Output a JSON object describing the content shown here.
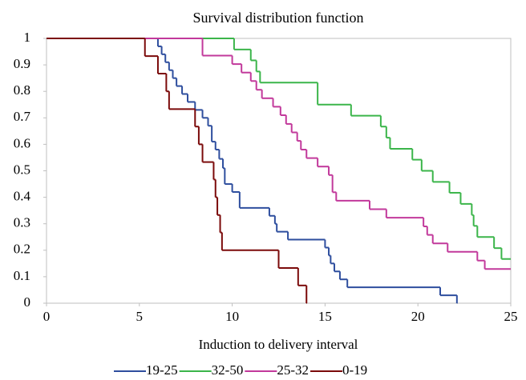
{
  "chart_data": {
    "type": "step",
    "title": "Survival distribution function",
    "x_label": "Induction to delivery interval",
    "xlim": [
      0,
      25
    ],
    "xticks": [
      0,
      5,
      10,
      15,
      20,
      25
    ],
    "ylim": [
      0,
      1
    ],
    "yticks": [
      0,
      0.1,
      0.2,
      0.3,
      0.4,
      0.5,
      0.6,
      0.7,
      0.8,
      0.9,
      1
    ],
    "series": [
      {
        "name": "19-25",
        "color": "#2e4e9e",
        "x": [
          0,
          6.0,
          6.2,
          6.4,
          6.6,
          6.8,
          7.0,
          7.3,
          7.6,
          8.0,
          8.4,
          8.7,
          8.9,
          9.1,
          9.3,
          9.5,
          9.6,
          10.0,
          10.4,
          12.0,
          12.3,
          12.4,
          13.0,
          15.0,
          15.2,
          15.3,
          15.5,
          15.8,
          16.2,
          21.2,
          22.1
        ],
        "values": [
          1,
          0.97,
          0.94,
          0.91,
          0.88,
          0.85,
          0.82,
          0.79,
          0.76,
          0.73,
          0.7,
          0.67,
          0.61,
          0.58,
          0.545,
          0.51,
          0.45,
          0.42,
          0.36,
          0.33,
          0.3,
          0.27,
          0.24,
          0.21,
          0.18,
          0.15,
          0.12,
          0.09,
          0.06,
          0.03,
          0
        ]
      },
      {
        "name": "32-50",
        "color": "#3bb54a",
        "x": [
          0,
          10.1,
          11.0,
          11.3,
          11.5,
          14.6,
          16.4,
          18.0,
          18.3,
          18.5,
          19.7,
          20.2,
          20.8,
          21.7,
          22.3,
          22.9,
          23.0,
          23.2,
          24.1,
          24.5
        ],
        "values": [
          1,
          0.958,
          0.917,
          0.875,
          0.833,
          0.75,
          0.708,
          0.667,
          0.625,
          0.583,
          0.542,
          0.5,
          0.458,
          0.417,
          0.375,
          0.333,
          0.292,
          0.25,
          0.208,
          0.167
        ]
      },
      {
        "name": "25-32",
        "color": "#c2399b",
        "x": [
          0,
          8.4,
          10.0,
          10.5,
          11.0,
          11.3,
          11.6,
          12.2,
          12.6,
          12.9,
          13.2,
          13.5,
          13.7,
          14.0,
          14.6,
          15.2,
          15.4,
          15.6,
          17.4,
          18.3,
          20.3,
          20.5,
          20.8,
          21.6,
          23.2,
          23.6
        ],
        "values": [
          1,
          0.935,
          0.903,
          0.871,
          0.839,
          0.806,
          0.774,
          0.742,
          0.71,
          0.677,
          0.645,
          0.613,
          0.58,
          0.548,
          0.516,
          0.484,
          0.419,
          0.387,
          0.355,
          0.323,
          0.29,
          0.258,
          0.226,
          0.194,
          0.161,
          0.129
        ]
      },
      {
        "name": "0-19",
        "color": "#7b0a0a",
        "x": [
          0,
          5.3,
          6.0,
          6.45,
          6.6,
          8.0,
          8.2,
          8.4,
          9.0,
          9.1,
          9.2,
          9.35,
          9.45,
          12.5,
          13.55,
          14.0
        ],
        "values": [
          1,
          0.933,
          0.867,
          0.8,
          0.733,
          0.667,
          0.6,
          0.533,
          0.467,
          0.4,
          0.333,
          0.267,
          0.2,
          0.133,
          0.067,
          0
        ]
      }
    ]
  }
}
